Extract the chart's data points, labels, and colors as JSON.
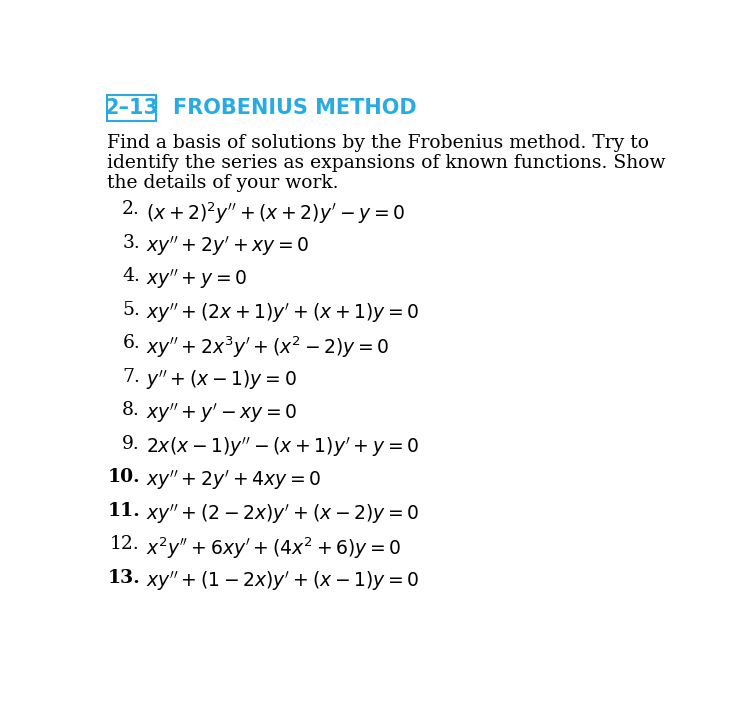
{
  "background_color": "#ffffff",
  "section_label": "2–13",
  "section_label_color": "#29abe2",
  "section_title": "FROBENIUS METHOD",
  "section_title_color": "#29abe2",
  "intro_text": [
    "Find a basis of solutions by the Frobenius method. Try to",
    "identify the series as expansions of known functions. Show",
    "the details of your work."
  ],
  "problems": [
    {
      "num": "2.",
      "bold_num": false,
      "eq": "$(x + 2)^2y'' + (x + 2)y' - y = 0$"
    },
    {
      "num": "3.",
      "bold_num": false,
      "eq": "$xy'' + 2y' + xy = 0$"
    },
    {
      "num": "4.",
      "bold_num": false,
      "eq": "$xy'' + y = 0$"
    },
    {
      "num": "5.",
      "bold_num": false,
      "eq": "$xy'' + (2x + 1)y' + (x + 1)y = 0$"
    },
    {
      "num": "6.",
      "bold_num": false,
      "eq": "$xy'' + 2x^3y' + (x^2 - 2)y = 0$"
    },
    {
      "num": "7.",
      "bold_num": false,
      "eq": "$y'' + (x - 1)y = 0$"
    },
    {
      "num": "8.",
      "bold_num": false,
      "eq": "$xy'' + y' - xy = 0$"
    },
    {
      "num": "9.",
      "bold_num": false,
      "eq": "$2x(x - 1)y'' - (x + 1)y' + y = 0$"
    },
    {
      "num": "10.",
      "bold_num": true,
      "eq": "$xy'' + 2y' + 4xy = 0$"
    },
    {
      "num": "11.",
      "bold_num": true,
      "eq": "$xy'' + (2 - 2x)y' + (x - 2)y = 0$"
    },
    {
      "num": "12.",
      "bold_num": false,
      "eq": "$x^2y'' + 6xy' + (4x^2 + 6)y = 0$"
    },
    {
      "num": "13.",
      "bold_num": true,
      "eq": "$xy'' + (1 - 2x)y' + (x - 1)y = 0$"
    }
  ],
  "figsize": [
    7.48,
    7.08
  ],
  "dpi": 100
}
